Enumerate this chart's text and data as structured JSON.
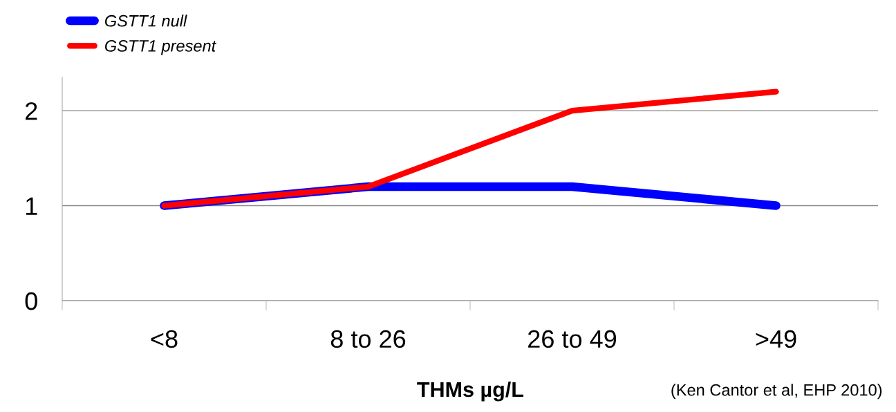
{
  "chart_data": {
    "type": "line",
    "categories": [
      "<8",
      "8 to 26",
      "26 to 49",
      ">49"
    ],
    "series": [
      {
        "name": "GSTT1 null",
        "color": "#0000ff",
        "values": [
          1,
          1.2,
          1.2,
          1.0
        ]
      },
      {
        "name": "GSTT1 present",
        "color": "#ff0000",
        "values": [
          1,
          1.2,
          2.0,
          2.2
        ]
      }
    ],
    "xlabel": "THMs µg/L",
    "annotations": [
      "(Ken Cantor et al, EHP 2010)"
    ],
    "ylim": [
      0,
      2.35
    ],
    "yticks": [
      0,
      1,
      2
    ],
    "grid": "y",
    "legend": "top left",
    "marker": "none",
    "line_style": "solid"
  }
}
